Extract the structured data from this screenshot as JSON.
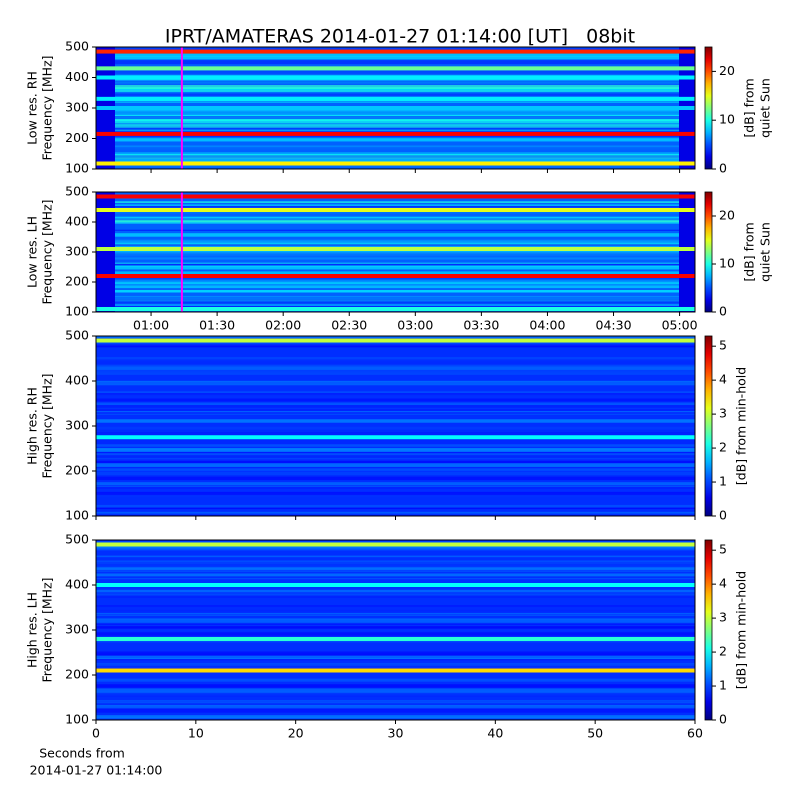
{
  "suptitle": "IPRT/AMATERAS 2014-01-27 01:14:00 [UT]   08bit",
  "chart_data": [
    {
      "type": "heatmap",
      "ylabel": [
        "Low res. RH",
        "Frequency [MHz]"
      ],
      "ylim": [
        100,
        500
      ],
      "yticks": [
        100,
        200,
        300,
        400,
        500
      ],
      "xlim": [
        35,
        307
      ],
      "xticks": [
        {
          "value": 60,
          "label": "01:00"
        },
        {
          "value": 90,
          "label": "01:30"
        },
        {
          "value": 120,
          "label": "02:00"
        },
        {
          "value": 150,
          "label": "02:30"
        },
        {
          "value": 180,
          "label": "03:00"
        },
        {
          "value": 210,
          "label": "03:30"
        },
        {
          "value": 240,
          "label": "04:00"
        },
        {
          "value": 270,
          "label": "04:30"
        },
        {
          "value": 300,
          "label": "05:00"
        }
      ],
      "show_xticklabels": false,
      "marker_x": 74,
      "marker_color": "#ff00ff",
      "colorbar": {
        "label": [
          "[dB] from",
          "quiet Sun"
        ],
        "clim": [
          0,
          25
        ],
        "ticks": [
          0,
          10,
          20
        ]
      },
      "bands": [
        {
          "freq": 485,
          "level": 21
        },
        {
          "freq": 430,
          "level": 12
        },
        {
          "freq": 400,
          "level": 9
        },
        {
          "freq": 330,
          "level": 9
        },
        {
          "freq": 300,
          "level": 8
        },
        {
          "freq": 215,
          "level": 22
        },
        {
          "freq": 118,
          "level": 16
        }
      ]
    },
    {
      "type": "heatmap",
      "ylabel": [
        "Low res. LH",
        "Frequency [MHz]"
      ],
      "ylim": [
        100,
        500
      ],
      "yticks": [
        100,
        200,
        300,
        400,
        500
      ],
      "xlim": [
        35,
        307
      ],
      "xticks": [
        {
          "value": 60,
          "label": "01:00"
        },
        {
          "value": 90,
          "label": "01:30"
        },
        {
          "value": 120,
          "label": "02:00"
        },
        {
          "value": 150,
          "label": "02:30"
        },
        {
          "value": 180,
          "label": "03:00"
        },
        {
          "value": 210,
          "label": "03:30"
        },
        {
          "value": 240,
          "label": "04:00"
        },
        {
          "value": 270,
          "label": "04:30"
        },
        {
          "value": 300,
          "label": "05:00"
        }
      ],
      "show_xticklabels": true,
      "marker_x": 74,
      "marker_color": "#ff00ff",
      "colorbar": {
        "label": [
          "[dB] from",
          "quiet Sun"
        ],
        "clim": [
          0,
          25
        ],
        "ticks": [
          0,
          10,
          20
        ]
      },
      "bands": [
        {
          "freq": 485,
          "level": 22
        },
        {
          "freq": 440,
          "level": 15
        },
        {
          "freq": 310,
          "level": 14
        },
        {
          "freq": 220,
          "level": 22
        },
        {
          "freq": 110,
          "level": 10
        }
      ]
    },
    {
      "type": "heatmap",
      "ylabel": [
        "High res. RH",
        "Frequency [MHz]"
      ],
      "ylim": [
        100,
        500
      ],
      "yticks": [
        100,
        200,
        300,
        400,
        500
      ],
      "xlim": [
        0,
        60
      ],
      "xticks": [
        0,
        10,
        20,
        30,
        40,
        50,
        60
      ],
      "show_xticklabels": false,
      "colorbar": {
        "label": [
          "[dB] from min-hold"
        ],
        "clim": [
          0,
          5.3
        ],
        "ticks": [
          0,
          1,
          2,
          3,
          4,
          5
        ]
      },
      "bands": [
        {
          "freq": 490,
          "level": 3
        },
        {
          "freq": 275,
          "level": 2
        }
      ]
    },
    {
      "type": "heatmap",
      "ylabel": [
        "High res. LH",
        "Frequency [MHz]"
      ],
      "ylim": [
        100,
        500
      ],
      "yticks": [
        100,
        200,
        300,
        400,
        500
      ],
      "xlim": [
        0,
        60
      ],
      "xticks": [
        0,
        10,
        20,
        30,
        40,
        50,
        60
      ],
      "show_xticklabels": true,
      "xlabel": [
        "Seconds from",
        "2014-01-27 01:14:00"
      ],
      "colorbar": {
        "label": [
          "[dB] from min-hold"
        ],
        "clim": [
          0,
          5.3
        ],
        "ticks": [
          0,
          1,
          2,
          3,
          4,
          5
        ]
      },
      "bands": [
        {
          "freq": 490,
          "level": 3
        },
        {
          "freq": 400,
          "level": 2
        },
        {
          "freq": 280,
          "level": 2.2
        },
        {
          "freq": 210,
          "level": 3.5
        }
      ]
    }
  ]
}
